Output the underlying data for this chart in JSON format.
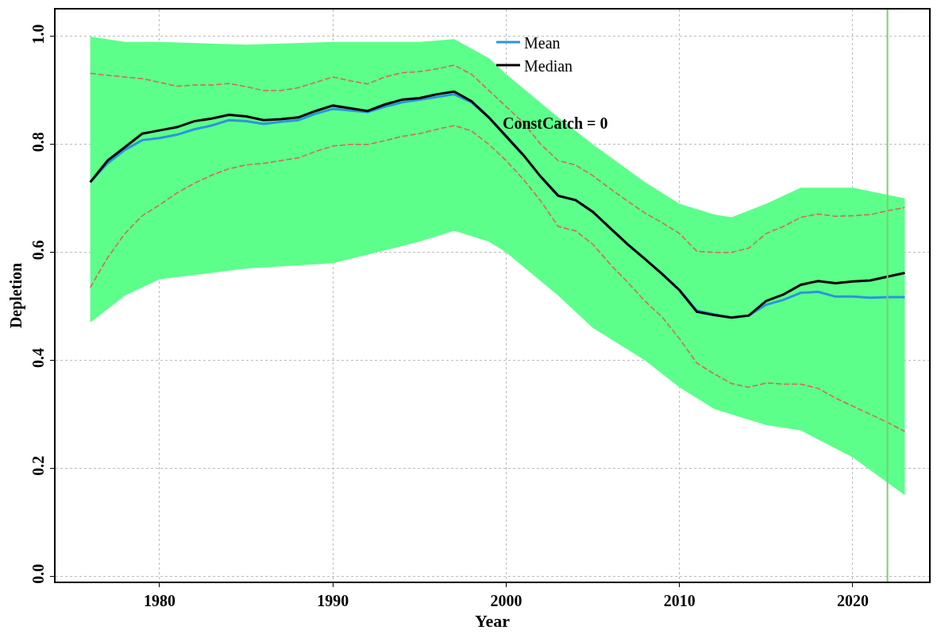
{
  "chart_data": {
    "type": "line",
    "xlabel": "Year",
    "ylabel": "Depletion",
    "annotations": [
      "ConstCatch = 0"
    ],
    "x": [
      1976,
      1977,
      1978,
      1979,
      1980,
      1981,
      1982,
      1983,
      1984,
      1985,
      1986,
      1987,
      1988,
      1989,
      1990,
      1991,
      1992,
      1993,
      1994,
      1995,
      1996,
      1997,
      1998,
      1999,
      2000,
      2001,
      2002,
      2003,
      2004,
      2005,
      2006,
      2007,
      2008,
      2009,
      2010,
      2011,
      2012,
      2013,
      2014,
      2015,
      2016,
      2017,
      2018,
      2019,
      2020,
      2021,
      2022,
      2023
    ],
    "series": [
      {
        "type": "line",
        "color": "#5cff8a",
        "x": [
          1976,
          1978,
          1980,
          1985,
          1990,
          1995,
          1997,
          1999,
          2000,
          2003,
          2005,
          2008,
          2010,
          2012,
          2013,
          2015,
          2017,
          2020,
          2023
        ],
        "values": [
          null,
          null,
          null,
          null,
          null,
          null,
          null,
          null,
          null,
          null,
          null,
          null,
          null,
          null,
          null,
          null,
          null,
          null,
          null
        ],
        "lower": [
          0.47,
          0.52,
          0.55,
          0.57,
          0.58,
          0.62,
          0.64,
          0.62,
          0.6,
          0.52,
          0.46,
          0.4,
          0.35,
          0.31,
          0.3,
          0.28,
          0.27,
          0.22,
          0.15
        ],
        "upper": [
          1.0,
          0.99,
          0.99,
          0.985,
          0.99,
          0.99,
          0.995,
          0.96,
          0.93,
          0.85,
          0.8,
          0.73,
          0.69,
          0.67,
          0.665,
          0.69,
          0.72,
          0.72,
          0.7
        ]
      },
      {
        "color": "#e0605a",
        "line_style": "dashed",
        "values": [
          0.932,
          0.928,
          0.925,
          0.922,
          0.915,
          0.908,
          0.91,
          0.91,
          0.913,
          0.907,
          0.9,
          0.9,
          0.905,
          0.915,
          0.925,
          0.918,
          0.912,
          0.925,
          0.933,
          0.935,
          0.94,
          0.947,
          0.93,
          0.9,
          0.87,
          0.84,
          0.8,
          0.77,
          0.762,
          0.742,
          0.718,
          0.695,
          0.673,
          0.655,
          0.635,
          0.602,
          0.6,
          0.6,
          0.608,
          0.635,
          0.648,
          0.665,
          0.671,
          0.667,
          0.668,
          0.67,
          0.677,
          0.683
        ]
      },
      {
        "color": "#e0605a",
        "line_style": "dashed",
        "values": [
          0.535,
          0.59,
          0.635,
          0.668,
          0.688,
          0.71,
          0.728,
          0.743,
          0.755,
          0.762,
          0.765,
          0.77,
          0.775,
          0.787,
          0.797,
          0.8,
          0.8,
          0.807,
          0.815,
          0.82,
          0.828,
          0.835,
          0.825,
          0.8,
          0.77,
          0.735,
          0.695,
          0.648,
          0.64,
          0.615,
          0.578,
          0.545,
          0.51,
          0.48,
          0.44,
          0.395,
          0.375,
          0.357,
          0.35,
          0.358,
          0.356,
          0.356,
          0.348,
          0.33,
          0.315,
          0.3,
          0.285,
          0.268
        ]
      },
      {
        "name": "Mean",
        "color": "#2b95dd",
        "line_style": "solid",
        "values": [
          0.73,
          0.765,
          0.79,
          0.808,
          0.812,
          0.818,
          0.828,
          0.835,
          0.845,
          0.843,
          0.838,
          0.842,
          0.845,
          0.857,
          0.866,
          0.863,
          0.86,
          0.87,
          0.878,
          0.883,
          0.888,
          0.893,
          0.878,
          0.85,
          0.815,
          0.78,
          0.74,
          0.705,
          0.697,
          0.675,
          0.645,
          0.615,
          0.588,
          0.56,
          0.53,
          0.492,
          0.485,
          0.479,
          0.483,
          0.503,
          0.512,
          0.525,
          0.527,
          0.518,
          0.518,
          0.516,
          0.517,
          0.517
        ]
      },
      {
        "name": "Median",
        "color": "#000000",
        "line_style": "solid",
        "values": [
          0.73,
          0.77,
          0.795,
          0.82,
          0.826,
          0.832,
          0.843,
          0.848,
          0.855,
          0.852,
          0.845,
          0.847,
          0.85,
          0.862,
          0.872,
          0.867,
          0.862,
          0.874,
          0.883,
          0.886,
          0.893,
          0.898,
          0.88,
          0.85,
          0.815,
          0.78,
          0.74,
          0.705,
          0.697,
          0.675,
          0.645,
          0.615,
          0.588,
          0.56,
          0.53,
          0.49,
          0.484,
          0.479,
          0.483,
          0.51,
          0.522,
          0.54,
          0.547,
          0.543,
          0.546,
          0.548,
          0.555,
          0.562
        ]
      }
    ],
    "ref_lines": [
      {
        "axis": "x",
        "value": 2022,
        "color": "#7ccf6e"
      }
    ],
    "xlim": [
      1974,
      2024.4
    ],
    "xticks": [
      1980,
      1990,
      2000,
      2010,
      2020
    ],
    "ylim": [
      -0.01,
      1.05
    ],
    "yticks": [
      {
        "value": 0,
        "label": "0.0"
      },
      0.2,
      0.4,
      0.6,
      0.8,
      {
        "value": 1,
        "label": "1.0"
      }
    ],
    "grid": true,
    "legend": "top",
    "marker": "none"
  }
}
